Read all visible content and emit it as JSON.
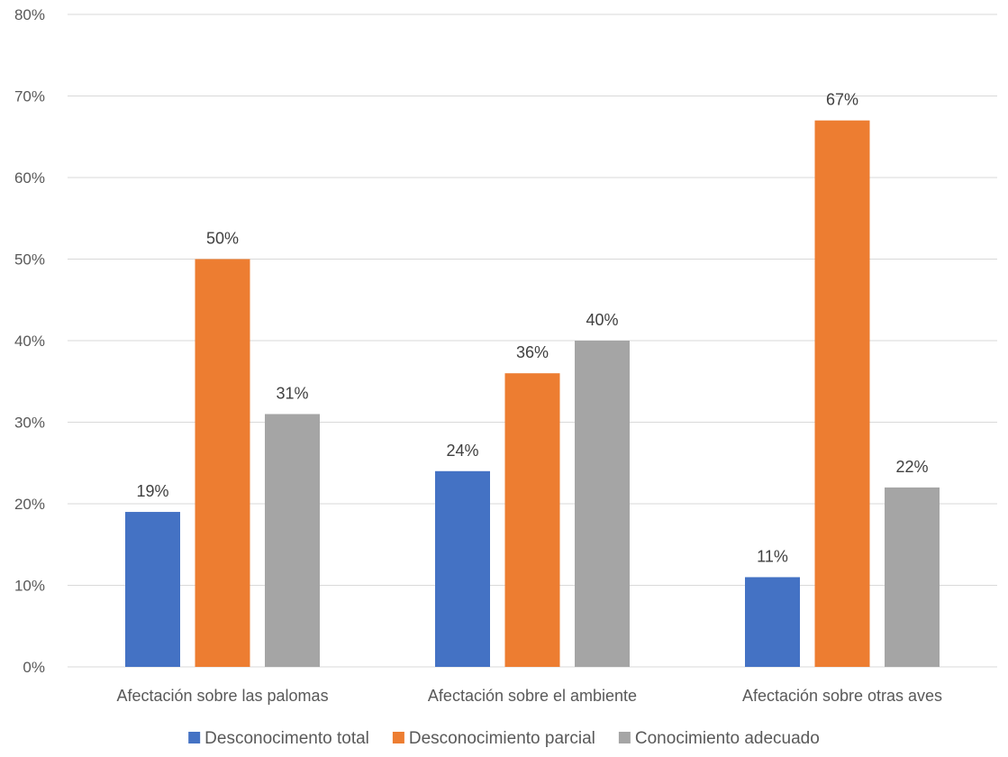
{
  "chart_data": {
    "type": "bar",
    "categories": [
      "Afectación sobre las palomas",
      "Afectación sobre el ambiente",
      "Afectación sobre otras aves"
    ],
    "series": [
      {
        "name": "Desconocimento total",
        "values": [
          19,
          24,
          11
        ],
        "labels": [
          "19%",
          "24%",
          "11%"
        ],
        "color": "#4472c4"
      },
      {
        "name": "Desconocimiento parcial",
        "values": [
          50,
          36,
          67
        ],
        "labels": [
          "50%",
          "36%",
          "67%"
        ],
        "color": "#ed7d31"
      },
      {
        "name": "Conocimiento adecuado",
        "values": [
          31,
          40,
          22
        ],
        "labels": [
          "31%",
          "40%",
          "22%"
        ],
        "color": "#a5a5a5"
      }
    ],
    "y_ticks": [
      0,
      10,
      20,
      30,
      40,
      50,
      60,
      70,
      80
    ],
    "y_tick_labels": [
      "0%",
      "10%",
      "20%",
      "30%",
      "40%",
      "50%",
      "60%",
      "70%",
      "80%"
    ],
    "ylim": [
      0,
      80
    ],
    "grid": true,
    "legend_position": "bottom",
    "gridline_color": "#d9d9d9"
  }
}
